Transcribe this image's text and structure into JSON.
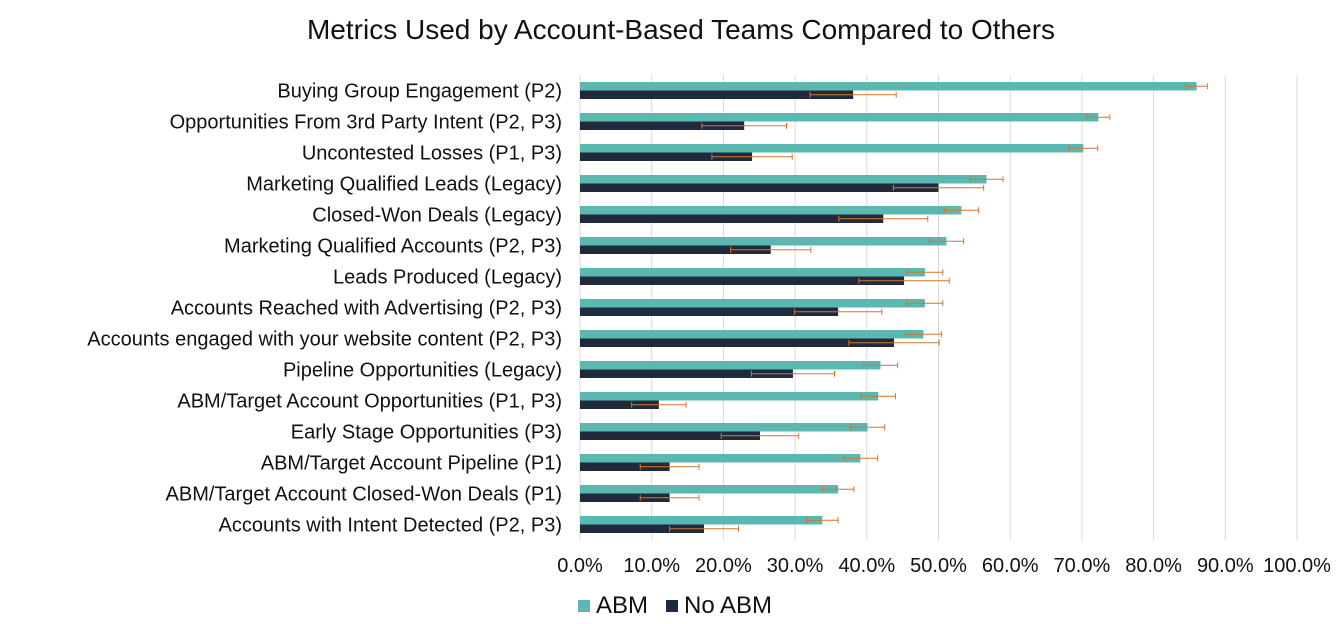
{
  "chart_data": {
    "type": "bar",
    "orientation": "horizontal",
    "title": "Metrics Used by Account-Based Teams Compared to Others",
    "categories": [
      "Buying Group Engagement (P2)",
      "Opportunities From 3rd Party Intent (P2, P3)",
      "Uncontested Losses (P1, P3)",
      "Marketing Qualified Leads (Legacy)",
      "Closed-Won Deals (Legacy)",
      "Marketing Qualified Accounts (P2, P3)",
      "Leads Produced (Legacy)",
      "Accounts Reached with Advertising (P2, P3)",
      "Accounts engaged with your website content (P2, P3)",
      "Pipeline Opportunities (Legacy)",
      "ABM/Target Account Opportunities (P1, P3)",
      "Early Stage Opportunities (P3)",
      "ABM/Target Account Pipeline (P1)",
      "ABM/Target Account Closed-Won Deals (P1)",
      "Accounts with Intent Detected (P2, P3)"
    ],
    "series": [
      {
        "name": "ABM",
        "color": "#5bb8b0",
        "values": [
          0.86,
          0.723,
          0.702,
          0.567,
          0.532,
          0.511,
          0.481,
          0.481,
          0.479,
          0.419,
          0.416,
          0.401,
          0.391,
          0.36,
          0.338
        ],
        "error": [
          0.015,
          0.016,
          0.02,
          0.023,
          0.024,
          0.024,
          0.025,
          0.025,
          0.025,
          0.024,
          0.024,
          0.024,
          0.024,
          0.022,
          0.022
        ]
      },
      {
        "name": "No ABM",
        "color": "#1f2a3c",
        "values": [
          0.381,
          0.229,
          0.24,
          0.5,
          0.423,
          0.266,
          0.452,
          0.36,
          0.438,
          0.297,
          0.11,
          0.251,
          0.125,
          0.125,
          0.173
        ],
        "error": [
          0.06,
          0.059,
          0.056,
          0.063,
          0.062,
          0.056,
          0.063,
          0.061,
          0.063,
          0.058,
          0.038,
          0.054,
          0.041,
          0.041,
          0.048
        ]
      }
    ],
    "xlim": [
      0,
      1.0
    ],
    "xticks": [
      "0.0%",
      "10.0%",
      "20.0%",
      "30.0%",
      "40.0%",
      "50.0%",
      "60.0%",
      "70.0%",
      "80.0%",
      "90.0%",
      "100.0%"
    ],
    "xlabel": "",
    "ylabel": "",
    "grid": "vertical",
    "legend_position": "bottom-center",
    "error_bar_color": "#d9742b"
  }
}
